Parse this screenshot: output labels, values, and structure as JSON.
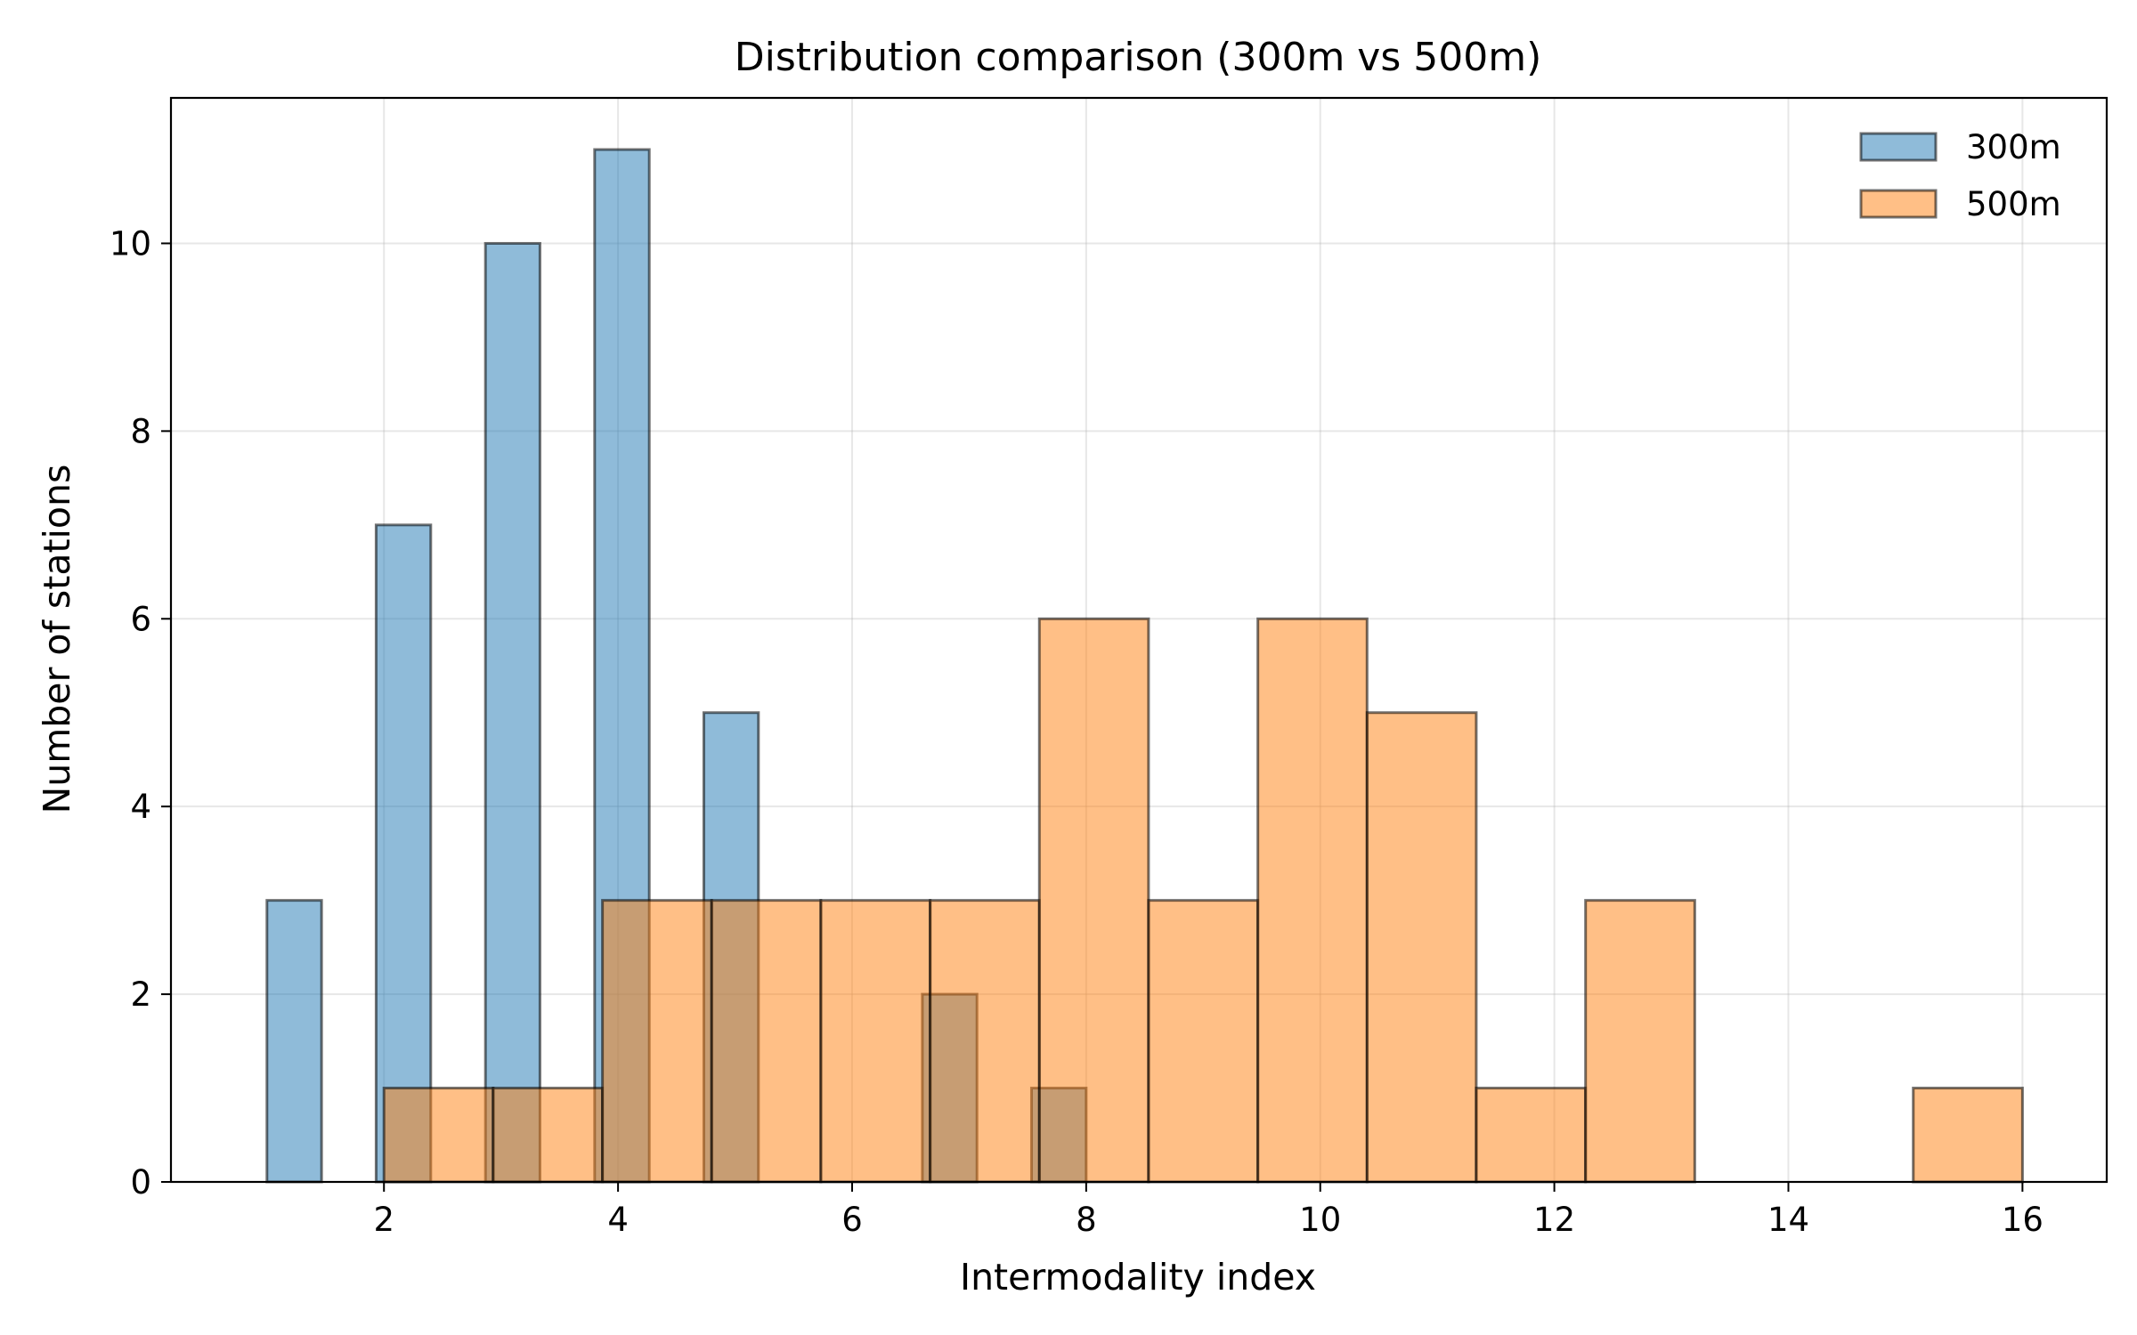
{
  "chart_data": {
    "type": "bar",
    "subtype": "overlapping histogram",
    "title": "Distribution comparison (300m vs 500m)",
    "xlabel": "Intermodality index",
    "ylabel": "Number of stations",
    "xlim": [
      0.18,
      16.72
    ],
    "ylim": [
      0,
      11.55
    ],
    "xticks": [
      2,
      4,
      6,
      8,
      10,
      12,
      14,
      16
    ],
    "yticks": [
      0,
      2,
      4,
      6,
      8,
      10
    ],
    "grid": true,
    "legend": {
      "position": "top-right"
    },
    "series": [
      {
        "name": "300m",
        "color": "#1f77b4",
        "bins": [
          {
            "x0": 1.0,
            "x1": 1.467,
            "count": 3
          },
          {
            "x0": 1.467,
            "x1": 1.933,
            "count": 0
          },
          {
            "x0": 1.933,
            "x1": 2.4,
            "count": 7
          },
          {
            "x0": 2.4,
            "x1": 2.867,
            "count": 0
          },
          {
            "x0": 2.867,
            "x1": 3.333,
            "count": 10
          },
          {
            "x0": 3.333,
            "x1": 3.8,
            "count": 0
          },
          {
            "x0": 3.8,
            "x1": 4.267,
            "count": 11
          },
          {
            "x0": 4.267,
            "x1": 4.733,
            "count": 0
          },
          {
            "x0": 4.733,
            "x1": 5.2,
            "count": 5
          },
          {
            "x0": 5.2,
            "x1": 5.667,
            "count": 0
          },
          {
            "x0": 5.667,
            "x1": 6.133,
            "count": 0
          },
          {
            "x0": 6.133,
            "x1": 6.6,
            "count": 0
          },
          {
            "x0": 6.6,
            "x1": 7.067,
            "count": 2
          },
          {
            "x0": 7.067,
            "x1": 7.533,
            "count": 0
          },
          {
            "x0": 7.533,
            "x1": 8.0,
            "count": 1
          }
        ]
      },
      {
        "name": "500m",
        "color": "#ff7f0e",
        "bins": [
          {
            "x0": 2.0,
            "x1": 2.933,
            "count": 1
          },
          {
            "x0": 2.933,
            "x1": 3.867,
            "count": 1
          },
          {
            "x0": 3.867,
            "x1": 4.8,
            "count": 3
          },
          {
            "x0": 4.8,
            "x1": 5.733,
            "count": 3
          },
          {
            "x0": 5.733,
            "x1": 6.667,
            "count": 3
          },
          {
            "x0": 6.667,
            "x1": 7.6,
            "count": 3
          },
          {
            "x0": 7.6,
            "x1": 8.533,
            "count": 6
          },
          {
            "x0": 8.533,
            "x1": 9.467,
            "count": 3
          },
          {
            "x0": 9.467,
            "x1": 10.4,
            "count": 6
          },
          {
            "x0": 10.4,
            "x1": 11.333,
            "count": 5
          },
          {
            "x0": 11.333,
            "x1": 12.267,
            "count": 1
          },
          {
            "x0": 12.267,
            "x1": 13.2,
            "count": 3
          },
          {
            "x0": 13.2,
            "x1": 14.133,
            "count": 0
          },
          {
            "x0": 14.133,
            "x1": 15.067,
            "count": 0
          },
          {
            "x0": 15.067,
            "x1": 16.0,
            "count": 1
          }
        ]
      }
    ]
  }
}
